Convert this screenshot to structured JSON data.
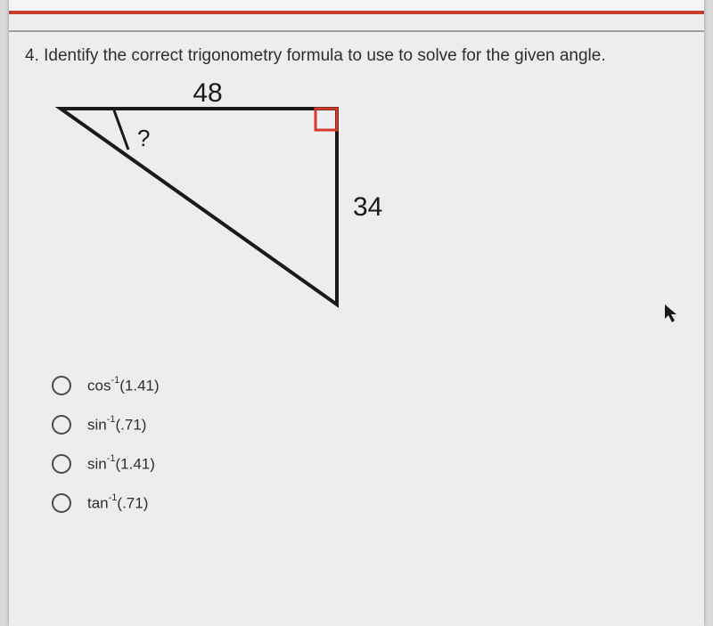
{
  "question": {
    "number": "4.",
    "prompt": "Identify the correct trigonometry formula to use to solve for the given angle."
  },
  "triangle": {
    "top_label": "48",
    "angle_label": "?",
    "right_label": "34",
    "stroke_color": "#1a1a1a",
    "right_angle_color": "#d73a2a",
    "stroke_width": 4,
    "label_fontsize": 30,
    "angle_fontsize": 26,
    "vertices": {
      "A": [
        10,
        30
      ],
      "B": [
        320,
        30
      ],
      "C": [
        320,
        250
      ]
    }
  },
  "options": [
    {
      "func": "cos",
      "exp": "-1",
      "arg": "(1.41)"
    },
    {
      "func": "sin",
      "exp": "-1",
      "arg": "(.71)"
    },
    {
      "func": "sin",
      "exp": "-1",
      "arg": "(1.41)"
    },
    {
      "func": "tan",
      "exp": "-1",
      "arg": "(.71)"
    }
  ],
  "colors": {
    "page_bg": "#ededed",
    "outer_bg": "#d8dad8",
    "accent_bar": "#c93a2e",
    "text": "#2d2f2d",
    "divider": "#9aa09a",
    "radio_border": "#4a4a4a"
  }
}
